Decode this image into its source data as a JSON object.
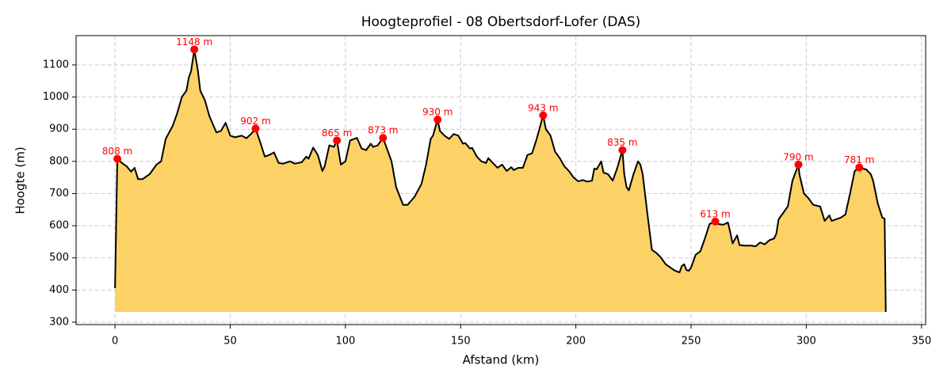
{
  "chart_data": {
    "type": "area",
    "title": "Hoogteprofiel - 08 Obertsdorf-Lofer (DAS)",
    "xlabel": "Afstand (km)",
    "ylabel": "Hoogte (m)",
    "x": [
      0,
      1,
      3,
      5,
      7,
      8.5,
      10,
      12,
      15,
      18,
      20,
      22,
      25,
      27,
      29,
      31,
      32,
      33,
      34.4,
      36,
      37,
      39,
      41,
      44,
      46,
      48,
      50,
      52,
      55,
      57,
      59,
      61,
      63,
      65,
      67,
      69,
      71,
      73,
      76,
      78,
      81,
      83,
      84,
      86,
      88,
      90,
      91,
      93,
      95,
      96.3,
      98,
      100,
      102,
      105,
      107,
      109,
      111,
      112,
      114,
      116.3,
      118,
      120,
      122,
      125,
      127,
      130,
      133,
      135,
      137,
      138,
      140,
      141,
      143,
      145,
      147,
      149,
      151,
      152,
      154,
      155,
      157,
      159,
      161,
      162,
      164,
      166,
      168,
      170,
      172,
      173,
      175,
      177,
      179,
      181,
      183,
      185.8,
      187,
      189,
      191,
      193,
      195,
      197,
      199,
      201,
      203,
      205,
      207,
      208,
      209,
      211,
      212,
      214,
      216,
      218,
      220.2,
      221,
      222,
      223,
      225,
      227,
      228,
      229,
      230,
      231,
      233,
      235,
      237,
      239,
      241,
      243,
      245,
      246,
      247,
      248,
      249,
      250,
      252,
      254,
      256,
      258,
      260.5,
      262,
      264,
      266,
      267,
      268,
      270,
      271,
      273,
      276,
      278,
      280,
      282,
      284,
      286,
      287,
      288,
      290,
      292,
      294,
      296.6,
      297,
      299,
      301,
      303,
      306,
      308,
      310,
      311,
      313,
      315,
      317,
      319,
      321,
      323,
      324,
      326,
      328,
      329,
      331,
      333,
      334,
      334.5
    ],
    "values": [
      406,
      808,
      795,
      785,
      768,
      780,
      745,
      745,
      760,
      790,
      800,
      870,
      910,
      950,
      1000,
      1020,
      1060,
      1080,
      1148,
      1080,
      1020,
      990,
      940,
      890,
      895,
      920,
      880,
      875,
      880,
      872,
      885,
      902,
      860,
      815,
      820,
      828,
      795,
      793,
      800,
      793,
      797,
      815,
      808,
      843,
      820,
      770,
      785,
      850,
      845,
      865,
      790,
      800,
      865,
      873,
      840,
      835,
      855,
      845,
      850,
      873,
      840,
      800,
      720,
      665,
      665,
      690,
      730,
      790,
      870,
      880,
      930,
      895,
      880,
      870,
      885,
      880,
      855,
      857,
      840,
      842,
      815,
      800,
      795,
      810,
      795,
      780,
      790,
      770,
      782,
      773,
      780,
      780,
      820,
      825,
      870,
      943,
      900,
      880,
      830,
      810,
      785,
      770,
      750,
      738,
      742,
      737,
      740,
      778,
      775,
      800,
      765,
      760,
      740,
      780,
      835,
      760,
      720,
      710,
      760,
      800,
      790,
      760,
      700,
      640,
      525,
      515,
      500,
      480,
      470,
      460,
      455,
      475,
      480,
      462,
      460,
      470,
      510,
      520,
      560,
      605,
      613,
      605,
      603,
      610,
      580,
      545,
      570,
      540,
      538,
      538,
      536,
      548,
      542,
      555,
      560,
      575,
      620,
      640,
      660,
      740,
      790,
      760,
      700,
      685,
      665,
      660,
      615,
      632,
      615,
      620,
      625,
      635,
      700,
      770,
      781,
      778,
      775,
      760,
      740,
      670,
      625,
      622,
      332
    ],
    "color": "#fcd266",
    "line_color": "#000000",
    "fill_baseline": 332,
    "markers": {
      "x": [
        1,
        34.4,
        61,
        96.3,
        116.3,
        140,
        185.8,
        220.2,
        260.5,
        296.6,
        323
      ],
      "values": [
        808,
        1148,
        902,
        865,
        873,
        930,
        943,
        835,
        613,
        790,
        781
      ],
      "value_labels": [
        "808 m",
        "1148 m",
        "902 m",
        "865 m",
        "873 m",
        "930 m",
        "943 m",
        "835 m",
        "613 m",
        "790 m",
        "781 m"
      ],
      "color": "#ff0000"
    },
    "xlim": [
      -16.9,
      351.8
    ],
    "ylim": [
      292.6,
      1191
    ],
    "xticks": [
      0,
      50,
      100,
      150,
      200,
      250,
      300,
      350
    ],
    "yticks": [
      300,
      400,
      500,
      600,
      700,
      800,
      900,
      1000,
      1100
    ],
    "grid": true
  }
}
